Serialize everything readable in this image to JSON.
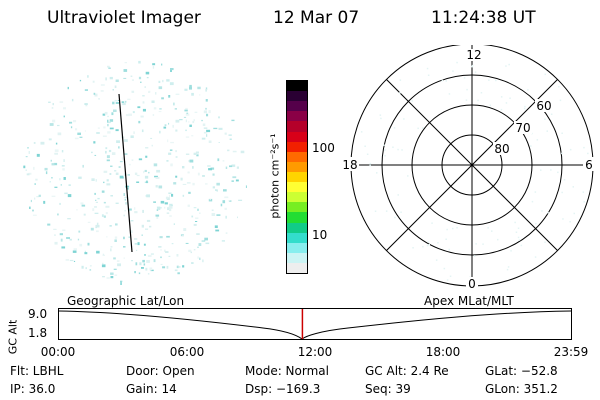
{
  "header": {
    "title": "Ultraviolet Imager",
    "date": "12 Mar 07",
    "time": "11:24:38 UT"
  },
  "colorbar": {
    "label": "photon cm⁻²s⁻¹",
    "ticks": [
      "100",
      "10"
    ],
    "colors": [
      "#000000",
      "#2a0033",
      "#55004a",
      "#8a0046",
      "#b5002a",
      "#d80018",
      "#f22000",
      "#ff6a00",
      "#ff9a00",
      "#ffd400",
      "#ffff33",
      "#ccff33",
      "#77ee22",
      "#22dd33",
      "#11cc88",
      "#33ddcc",
      "#88eeee",
      "#ccf4f4",
      "#eeeeee"
    ]
  },
  "polar": {
    "mlt_labels": {
      "top": "12",
      "left": "18",
      "right": "6",
      "bottom": "0"
    },
    "lat_labels": [
      "60",
      "70",
      "80"
    ]
  },
  "altitude_panel": {
    "axis_label": "GC Alt",
    "y_ticks": [
      "9.0",
      "1.8"
    ],
    "left_title": "Geographic Lat/Lon",
    "right_title": "Apex MLat/MLT",
    "x_ticks": [
      "00:00",
      "06:00",
      "12:00",
      "18:00",
      "23:59"
    ],
    "marker_hour": 11.41,
    "marker_color": "#cc0000"
  },
  "status": {
    "filter": "Flt: LBHL",
    "door": "Door: Open",
    "mode": "Mode: Normal",
    "gc_alt": "GC Alt: 2.4 Re",
    "glat": "GLat: −52.8",
    "ip": "IP: 36.0",
    "gain": "Gain: 14",
    "dsp": "Dsp: −169.3",
    "seq": "Seq: 39",
    "glon": "GLon: 351.2"
  }
}
